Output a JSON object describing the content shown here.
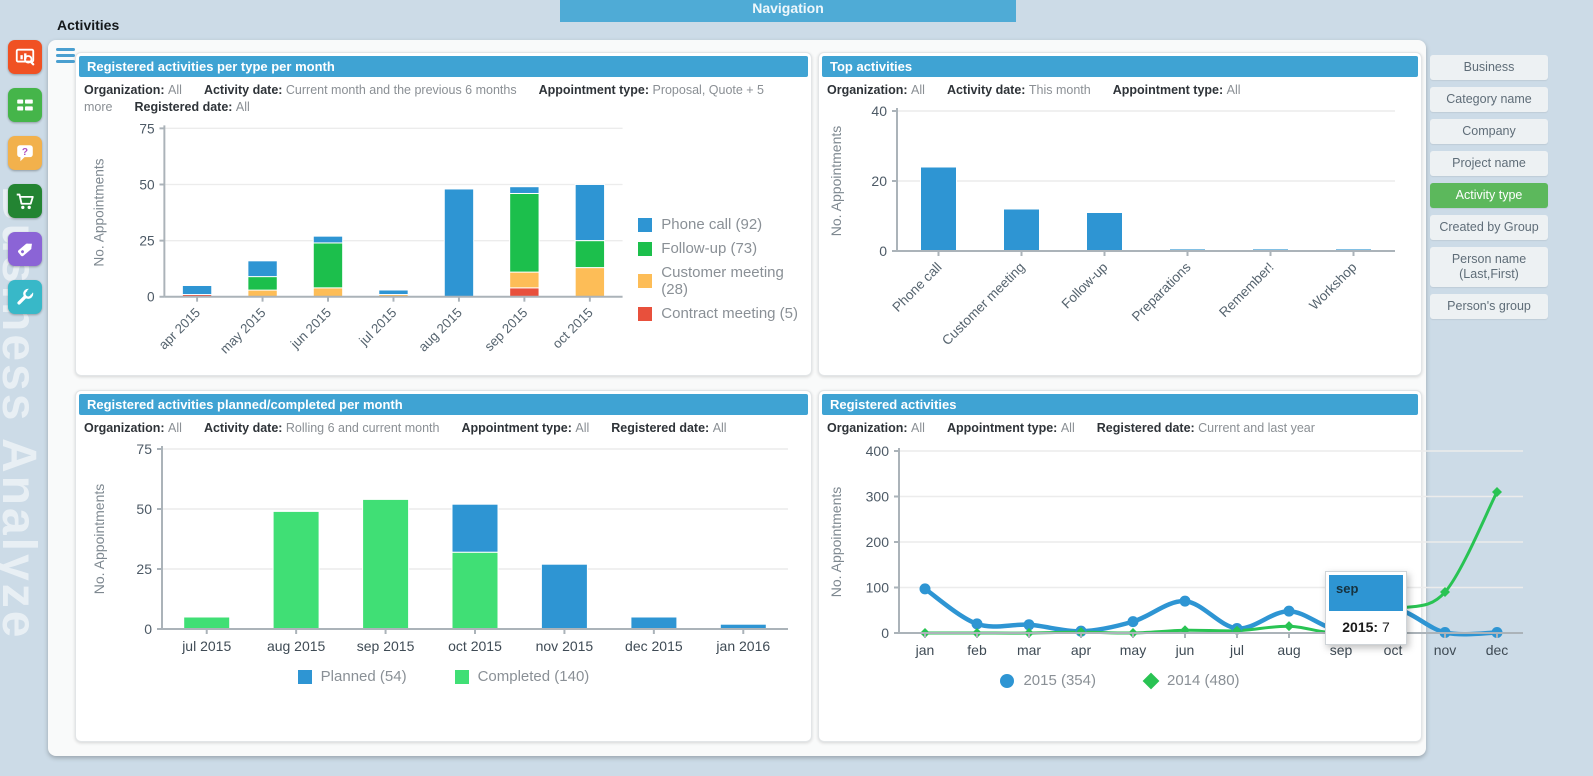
{
  "app": {
    "nav_title": "Navigation",
    "page_title": "Activities",
    "watermark": "Business Analyze",
    "accent_blue": "#3fa3d3",
    "active_green": "#5cb85c"
  },
  "left_toolbar": {
    "icons": [
      {
        "name": "analyze-chart",
        "bg": "#f05123"
      },
      {
        "name": "list",
        "bg": "#45b54a"
      },
      {
        "name": "help",
        "bg": "#f2b14c"
      },
      {
        "name": "cart",
        "bg": "#238432"
      },
      {
        "name": "tag",
        "bg": "#8b64d6"
      },
      {
        "name": "wrench",
        "bg": "#38b8c8"
      }
    ]
  },
  "group_buttons": {
    "items": [
      {
        "label": "Business",
        "active": false
      },
      {
        "label": "Category name",
        "active": false
      },
      {
        "label": "Company",
        "active": false
      },
      {
        "label": "Project name",
        "active": false
      },
      {
        "label": "Activity type",
        "active": true
      },
      {
        "label": "Created by Group",
        "active": false
      },
      {
        "label": "Person name (Last,First)",
        "active": false
      },
      {
        "label": "Person's group",
        "active": false
      }
    ]
  },
  "panels": [
    {
      "title": "Registered activities per type per month",
      "filters": [
        {
          "label": "Organization:",
          "value": "All"
        },
        {
          "label": "Activity date:",
          "value": "Current month and the previous 6 months"
        },
        {
          "label": "Appointment type:",
          "value": "Proposal, Quote + 5 more"
        },
        {
          "label": "Registered date:",
          "value": "All"
        }
      ]
    },
    {
      "title": "Top activities",
      "filters": [
        {
          "label": "Organization:",
          "value": "All"
        },
        {
          "label": "Activity date:",
          "value": "This month"
        },
        {
          "label": "Appointment type:",
          "value": "All"
        }
      ]
    },
    {
      "title": "Registered activities planned/completed per month",
      "filters": [
        {
          "label": "Organization:",
          "value": "All"
        },
        {
          "label": "Activity date:",
          "value": "Rolling 6 and current month"
        },
        {
          "label": "Appointment type:",
          "value": "All"
        },
        {
          "label": "Registered date:",
          "value": "All"
        }
      ]
    },
    {
      "title": "Registered activities",
      "filters": [
        {
          "label": "Organization:",
          "value": "All"
        },
        {
          "label": "Appointment type:",
          "value": "All"
        },
        {
          "label": "Registered date:",
          "value": "Current and last year"
        }
      ]
    }
  ],
  "chart_data": [
    {
      "type": "bar",
      "stacked": true,
      "title": "Registered activities per type per month",
      "categories": [
        "apr 2015",
        "may 2015",
        "jun 2015",
        "jul 2015",
        "aug 2015",
        "sep 2015",
        "oct 2015"
      ],
      "series": [
        {
          "name": "Contract meeting (5)",
          "color": "#e8503c",
          "values": [
            1,
            0,
            0,
            0,
            0,
            4,
            0
          ]
        },
        {
          "name": "Customer meeting (28)",
          "color": "#fdbd57",
          "values": [
            0,
            3,
            4,
            1,
            0,
            7,
            13
          ]
        },
        {
          "name": "Follow-up (73)",
          "color": "#1cbf4c",
          "values": [
            0,
            6,
            20,
            0,
            0,
            35,
            12
          ]
        },
        {
          "name": "Phone call (92)",
          "color": "#2e95d3",
          "values": [
            4,
            7,
            3,
            2,
            48,
            3,
            25
          ]
        }
      ],
      "legend_reverse": true,
      "legend_position": "right",
      "xlabel": "",
      "ylabel": "No. Appointments",
      "ylim": [
        0,
        75
      ],
      "yticks": [
        0,
        25,
        50,
        75
      ],
      "grid": true
    },
    {
      "type": "bar",
      "stacked": false,
      "title": "Top activities",
      "categories": [
        "Phone call",
        "Customer meeting",
        "Follow-up",
        "Preparations",
        "Remember!",
        "Workshop"
      ],
      "series": [
        {
          "name": "Appointments",
          "color": "#2e95d3",
          "values": [
            24,
            12,
            11,
            0.6,
            0.6,
            0.6
          ]
        }
      ],
      "legend_position": "none",
      "xlabel": "",
      "ylabel": "No. Appointments",
      "ylim": [
        0,
        40
      ],
      "yticks": [
        0,
        20,
        40
      ],
      "grid": true
    },
    {
      "type": "bar",
      "stacked": true,
      "title": "Registered activities planned/completed per month",
      "categories": [
        "jul 2015",
        "aug 2015",
        "sep 2015",
        "oct 2015",
        "nov 2015",
        "dec 2015",
        "jan 2016"
      ],
      "series": [
        {
          "name": "Completed (140)",
          "color": "#40df75",
          "values": [
            5,
            49,
            54,
            32,
            0,
            0,
            0
          ]
        },
        {
          "name": "Planned (54)",
          "color": "#2e95d3",
          "values": [
            0,
            0,
            0,
            20,
            27,
            5,
            2
          ]
        }
      ],
      "legend_reverse": true,
      "legend_position": "bottom",
      "xlabel": "",
      "ylabel": "No. Appointments",
      "ylim": [
        0,
        75
      ],
      "yticks": [
        0,
        25,
        50,
        75
      ],
      "grid": true
    },
    {
      "type": "line",
      "title": "Registered activities",
      "categories": [
        "jan",
        "feb",
        "mar",
        "apr",
        "may",
        "jun",
        "jul",
        "aug",
        "sep",
        "oct",
        "nov",
        "dec"
      ],
      "series": [
        {
          "name": "2015 (354)",
          "color": "#2e95d3",
          "marker": "circle",
          "width": 4.5,
          "values": [
            97,
            20,
            18,
            4,
            25,
            70,
            10,
            48,
            7,
            53,
            1,
            1
          ]
        },
        {
          "name": "2014 (480)",
          "color": "#29c353",
          "marker": "diamond",
          "width": 3,
          "values": [
            0,
            0,
            0,
            2,
            0,
            6,
            5,
            15,
            2,
            50,
            90,
            310
          ]
        }
      ],
      "legend_position": "bottom",
      "xlabel": "",
      "ylabel": "No. Appointments",
      "ylim": [
        0,
        400
      ],
      "yticks": [
        0,
        100,
        200,
        300,
        400
      ],
      "grid": true,
      "highlight": {
        "series": 0,
        "index": 8
      },
      "tooltip": {
        "header": "sep",
        "row_label": "2015:",
        "row_value": "7"
      }
    }
  ]
}
